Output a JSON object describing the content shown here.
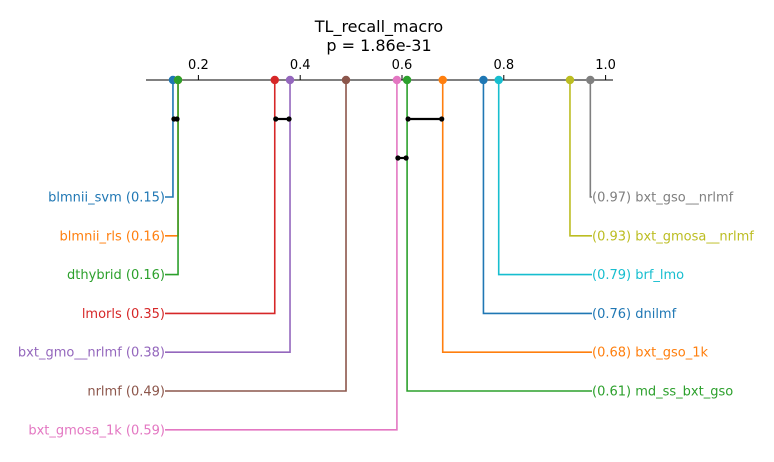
{
  "chart_data": {
    "type": "critical-difference",
    "title": "TL_recall_macro",
    "subtitle": "p = 1.86e-31",
    "axis": {
      "ticks": [
        0.2,
        0.4,
        0.6,
        0.8,
        1.0
      ],
      "tick_labels": [
        "0.2",
        "0.4",
        "0.6",
        "0.8",
        "1.0"
      ],
      "range": [
        0.1,
        1.02
      ]
    },
    "methods": [
      {
        "name": "blmnii_svm",
        "value": 0.15,
        "label": "blmnii_svm (0.15)",
        "color": "#1f77b4",
        "side": "left"
      },
      {
        "name": "blmnii_rls",
        "value": 0.16,
        "label": "blmnii_rls (0.16)",
        "color": "#ff7f0e",
        "side": "left"
      },
      {
        "name": "dthybrid",
        "value": 0.16,
        "label": "dthybrid (0.16)",
        "color": "#2ca02c",
        "side": "left"
      },
      {
        "name": "lmorls",
        "value": 0.35,
        "label": "lmorls (0.35)",
        "color": "#d62728",
        "side": "left"
      },
      {
        "name": "bxt_gmo__nrlmf",
        "value": 0.38,
        "label": "bxt_gmo__nrlmf (0.38)",
        "color": "#9467bd",
        "side": "left"
      },
      {
        "name": "nrlmf",
        "value": 0.49,
        "label": "nrlmf (0.49)",
        "color": "#8c564b",
        "side": "left"
      },
      {
        "name": "bxt_gmosa_1k",
        "value": 0.59,
        "label": "bxt_gmosa_1k (0.59)",
        "color": "#e377c2",
        "side": "left"
      },
      {
        "name": "md_ss_bxt_gso",
        "value": 0.61,
        "label": "(0.61) md_ss_bxt_gso",
        "color": "#2ca02c",
        "side": "right"
      },
      {
        "name": "bxt_gso_1k",
        "value": 0.68,
        "label": "(0.68) bxt_gso_1k",
        "color": "#ff7f0e",
        "side": "right"
      },
      {
        "name": "dnilmf",
        "value": 0.76,
        "label": "(0.76) dnilmf",
        "color": "#1f77b4",
        "side": "right"
      },
      {
        "name": "brf_lmo",
        "value": 0.79,
        "label": "(0.79) brf_lmo",
        "color": "#17becf",
        "side": "right"
      },
      {
        "name": "bxt_gmosa__nrlmf",
        "value": 0.93,
        "label": "(0.93) bxt_gmosa__nrlmf",
        "color": "#bcbd22",
        "side": "right"
      },
      {
        "name": "bxt_gso__nrlmf",
        "value": 0.97,
        "label": "(0.97) bxt_gso__nrlmf",
        "color": "#7f7f7f",
        "side": "right"
      }
    ],
    "cliques": [
      {
        "from": 0.15,
        "to": 0.16,
        "level": 0
      },
      {
        "from": 0.35,
        "to": 0.38,
        "level": 0
      },
      {
        "from": 0.61,
        "to": 0.68,
        "level": 0
      },
      {
        "from": 0.59,
        "to": 0.61,
        "level": 1
      }
    ]
  }
}
